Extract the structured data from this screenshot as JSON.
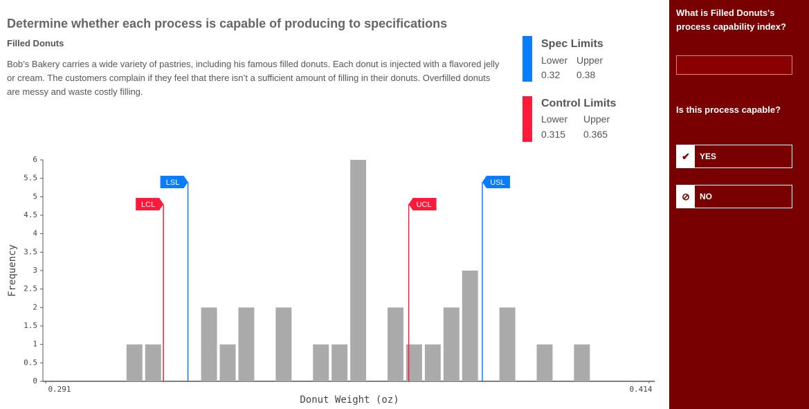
{
  "header": {
    "title": "Determine whether each process is capable of producing to specifications",
    "subtitle": "Filled Donuts",
    "description": "Bob’s Bakery carries a wide variety of pastries, including his famous filled donuts. Each donut is injected with a flavored jelly or cream. The customers complain if they feel that there isn’t a sufficient amount of filling in their donuts. Overfilled donuts are messy and waste costly filling."
  },
  "chart_data": {
    "type": "histogram",
    "xlabel": "Donut Weight (oz)",
    "ylabel": "Frequency",
    "bins": [
      0.3072,
      0.311,
      0.3148,
      0.3186,
      0.3224,
      0.3262,
      0.33,
      0.3338,
      0.3376,
      0.3414,
      0.3452,
      0.349,
      0.3528,
      0.3566,
      0.3604,
      0.3642,
      0.368,
      0.3718,
      0.3756,
      0.3794,
      0.3832,
      0.387,
      0.3908,
      0.3946,
      0.3984,
      0.4022
    ],
    "values": [
      1,
      1,
      0,
      0,
      2,
      1,
      2,
      0,
      2,
      0,
      1,
      1,
      6,
      0,
      2,
      1,
      1,
      2,
      3,
      0,
      2,
      0,
      1,
      0,
      1
    ],
    "color": "#aaaaaa",
    "xlim": [
      0.291,
      0.414
    ],
    "xticks": [
      0.291,
      0.414
    ],
    "ylim": [
      0,
      6
    ],
    "yticks": [
      0,
      0.5,
      1,
      1.5,
      2,
      2.5,
      3,
      3.5,
      4,
      4.5,
      5,
      5.5,
      6
    ],
    "spec": {
      "title": "Spec Limits",
      "lower_label": "Lower",
      "upper_label": "Upper",
      "lower": 0.32,
      "upper": 0.38,
      "lower_tag": "LSL",
      "upper_tag": "USL",
      "color": "#0a7cff"
    },
    "control": {
      "title": "Control Limits",
      "lower_label": "Lower",
      "upper_label": "Upper",
      "lower": 0.315,
      "upper": 0.365,
      "lower_tag": "LCL",
      "upper_tag": "UCL",
      "color": "#ff1a3c"
    }
  },
  "sidebar": {
    "question1": "What is Filled Donuts's process capability index?",
    "question2": "Is this process capable?",
    "yes": "YES",
    "no": "NO"
  }
}
